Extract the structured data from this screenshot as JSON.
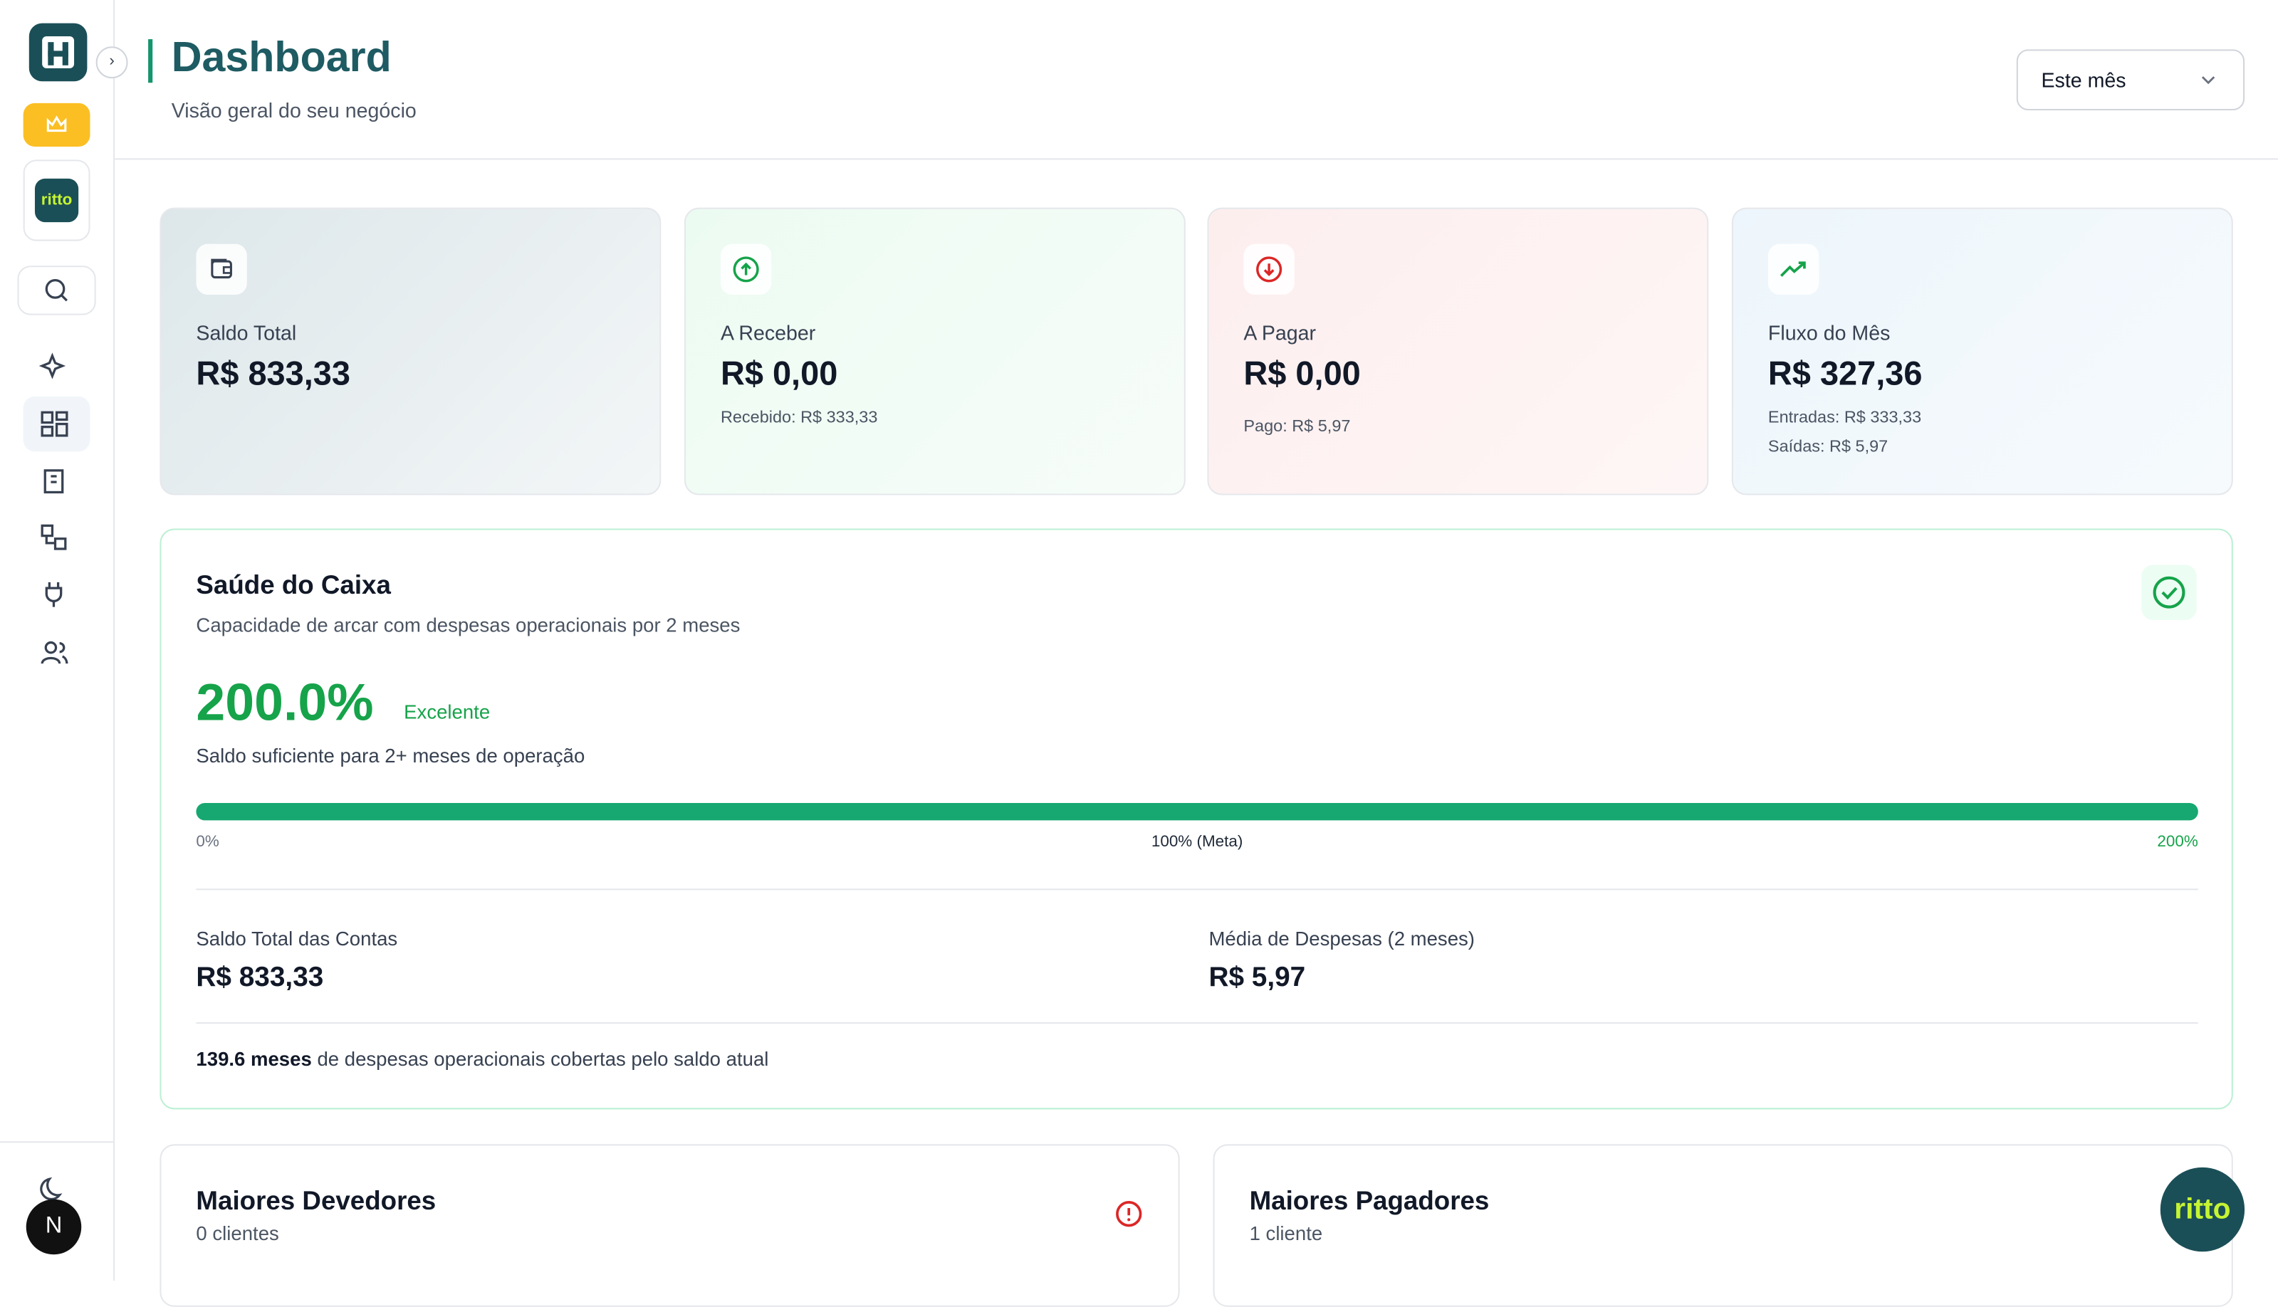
{
  "sidebar": {
    "brand": "ritto",
    "avatar": "N"
  },
  "header": {
    "title": "Dashboard",
    "subtitle": "Visão geral do seu negócio",
    "period": "Este mês"
  },
  "summary_cards": [
    {
      "label": "Saldo Total",
      "value": "R$ 833,33",
      "details": []
    },
    {
      "label": "A Receber",
      "value": "R$ 0,00",
      "details": [
        "Recebido: R$ 333,33"
      ]
    },
    {
      "label": "A Pagar",
      "value": "R$ 0,00",
      "details": [
        "Pago: R$ 5,97"
      ]
    },
    {
      "label": "Fluxo do Mês",
      "value": "R$ 327,36",
      "details": [
        "Entradas: R$ 333,33",
        "Saídas: R$ 5,97"
      ]
    }
  ],
  "cash_health": {
    "title": "Saúde do Caixa",
    "subtitle": "Capacidade de arcar com despesas operacionais por 2 meses",
    "percent": "200.0%",
    "status": "Excelente",
    "message": "Saldo suficiente para 2+ meses de operação",
    "scale": [
      "0%",
      "100% (Meta)",
      "200%"
    ],
    "stats": [
      {
        "label": "Saldo Total das Contas",
        "value": "R$ 833,33"
      },
      {
        "label": "Média de Despesas (2 meses)",
        "value": "R$ 5,97"
      }
    ],
    "coverage_bold": "139.6 meses",
    "coverage_text": "de despesas operacionais cobertas pelo saldo atual"
  },
  "lists": [
    {
      "title": "Maiores Devedores",
      "count": "0 clientes"
    },
    {
      "title": "Maiores Pagadores",
      "count": "1 cliente"
    }
  ],
  "floating_brand": "ritto"
}
